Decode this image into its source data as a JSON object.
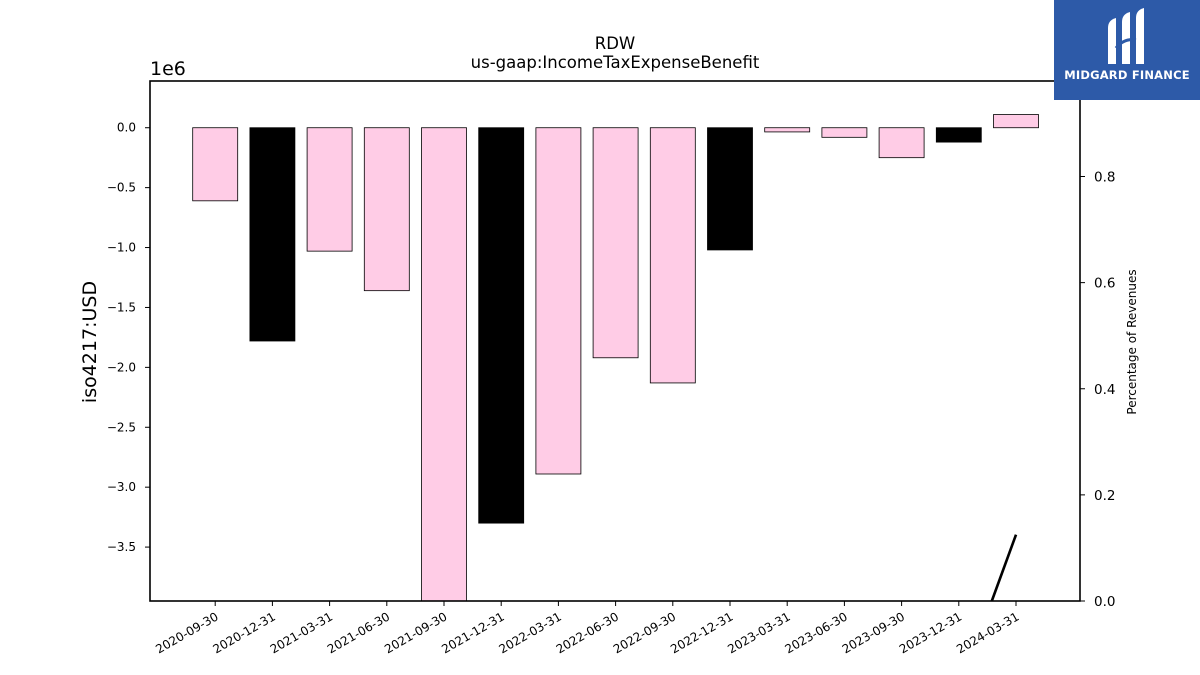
{
  "brand": {
    "name": "MIDGARD FINANCE",
    "bg_color": "#2d5aa8"
  },
  "chart_data": {
    "type": "bar",
    "title": "RDW",
    "subtitle": "us-gaap:IncomeTaxExpenseBenefit",
    "ylabel": "iso4217:USD",
    "y_offset_label": "1e6",
    "y2label": "Percentage of Revenues",
    "categories": [
      "2020-09-30",
      "2020-12-31",
      "2021-03-31",
      "2021-06-30",
      "2021-09-30",
      "2021-12-31",
      "2022-03-31",
      "2022-06-30",
      "2022-09-30",
      "2022-12-31",
      "2023-03-31",
      "2023-06-30",
      "2023-09-30",
      "2023-12-31",
      "2024-03-31"
    ],
    "values": [
      -610000,
      -1780000,
      -1030000,
      -1360000,
      -3950000,
      -3300000,
      -2890000,
      -1920000,
      -2130000,
      -1020000,
      -35000,
      -80000,
      -250000,
      -120000,
      110000
    ],
    "bar_colors": [
      "#ffcce6",
      "#000000",
      "#ffcce6",
      "#ffcce6",
      "#ffcce6",
      "#000000",
      "#ffcce6",
      "#ffcce6",
      "#ffcce6",
      "#000000",
      "#ffcce6",
      "#ffcce6",
      "#ffcce6",
      "#000000",
      "#ffcce6"
    ],
    "ylim": [
      -3950000,
      390000
    ],
    "yticks": [
      0,
      -500000,
      -1000000,
      -1500000,
      -2000000,
      -2500000,
      -3000000,
      -3500000
    ],
    "ytick_labels": [
      "0.0",
      "−0.5",
      "−1.0",
      "−1.5",
      "−2.0",
      "−2.5",
      "−3.0",
      "−3.5"
    ],
    "y2lim": [
      0,
      0.98
    ],
    "y2ticks": [
      0,
      0.2,
      0.4,
      0.6,
      0.8
    ],
    "y2tick_labels": [
      "0.0",
      "0.2",
      "0.4",
      "0.6",
      "0.8"
    ],
    "line_series": {
      "x": [
        "2023-12-31",
        "2024-03-31"
      ],
      "values": [
        0.0,
        0.125
      ],
      "color": "#000000"
    },
    "grid": false,
    "legend": "none"
  }
}
